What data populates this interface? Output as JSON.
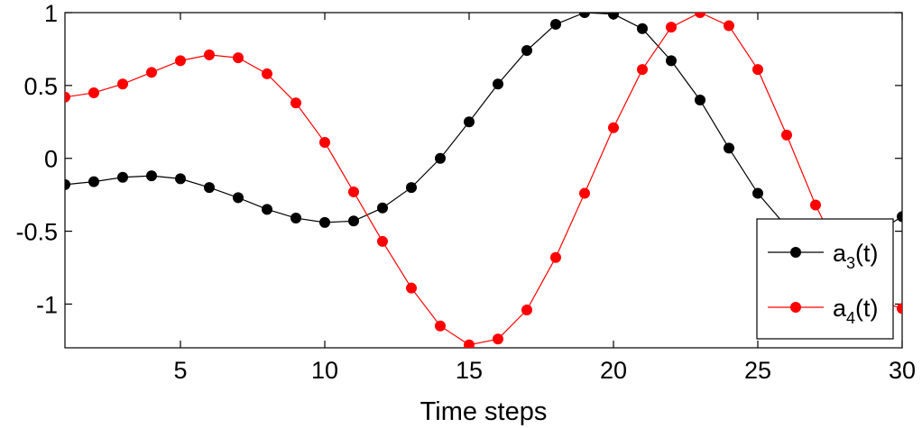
{
  "chart_data": {
    "type": "line",
    "title": "",
    "xlabel": "Time steps",
    "ylabel": "",
    "xlim": [
      1,
      30
    ],
    "ylim": [
      -1.3,
      1
    ],
    "xticks": [
      5,
      10,
      15,
      20,
      25,
      30
    ],
    "yticks": [
      1,
      0.5,
      0,
      -0.5,
      -1
    ],
    "xtick_labels": [
      "5",
      "10",
      "15",
      "20",
      "25",
      "30"
    ],
    "ytick_labels": [
      "1",
      "0.5",
      "0",
      "-0.5",
      "-1"
    ],
    "grid": false,
    "legend_position": "bottom-right",
    "x": [
      1,
      2,
      3,
      4,
      5,
      6,
      7,
      8,
      9,
      10,
      11,
      12,
      13,
      14,
      15,
      16,
      17,
      18,
      19,
      20,
      21,
      22,
      23,
      24,
      25,
      26,
      27,
      28,
      29,
      30
    ],
    "series": [
      {
        "name": "a3(t)",
        "legend_base": "a",
        "legend_sub": "3",
        "legend_suffix": "(t)",
        "color": "#000000",
        "values": [
          -0.18,
          -0.16,
          -0.13,
          -0.12,
          -0.14,
          -0.2,
          -0.27,
          -0.35,
          -0.41,
          -0.44,
          -0.43,
          -0.34,
          -0.2,
          0.0,
          0.25,
          0.51,
          0.74,
          0.92,
          1.0,
          0.99,
          0.89,
          0.67,
          0.4,
          0.07,
          -0.24,
          -0.47,
          -0.57,
          -0.58,
          -0.52,
          -0.4
        ]
      },
      {
        "name": "a4(t)",
        "legend_base": "a",
        "legend_sub": "4",
        "legend_suffix": "(t)",
        "color": "#ff0000",
        "values": [
          0.42,
          0.45,
          0.51,
          0.59,
          0.67,
          0.71,
          0.69,
          0.58,
          0.38,
          0.11,
          -0.23,
          -0.57,
          -0.89,
          -1.15,
          -1.28,
          -1.24,
          -1.04,
          -0.68,
          -0.24,
          0.21,
          0.61,
          0.9,
          1.0,
          0.91,
          0.61,
          0.16,
          -0.32,
          -0.72,
          -0.97,
          -1.03
        ]
      }
    ]
  }
}
